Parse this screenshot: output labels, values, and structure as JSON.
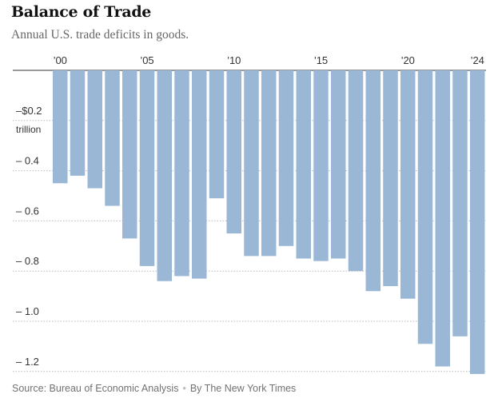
{
  "header": {
    "title": "Balance of Trade",
    "subtitle": "Annual U.S. trade deficits in goods."
  },
  "footer": {
    "source": "Source: Bureau of Economic Analysis",
    "separator": "•",
    "credit": "By The New York Times"
  },
  "colors": {
    "bar": "#9ab8d6",
    "axis": "#333333",
    "grid": "#bbbbbb",
    "text": "#333333"
  },
  "chart_data": {
    "type": "bar",
    "title": "Balance of Trade",
    "subtitle": "Annual U.S. trade deficits in goods.",
    "unit_label": "trillion",
    "x_tick_labels": [
      {
        "year": 2000,
        "label": "’00"
      },
      {
        "year": 2005,
        "label": "’05"
      },
      {
        "year": 2010,
        "label": "’10"
      },
      {
        "year": 2015,
        "label": "’15"
      },
      {
        "year": 2020,
        "label": "’20"
      },
      {
        "year": 2024,
        "label": "’24"
      }
    ],
    "y_tick_labels": [
      {
        "value": -0.2,
        "label": "–$0.2"
      },
      {
        "value": -0.4,
        "label": "– 0.4"
      },
      {
        "value": -0.6,
        "label": "– 0.6"
      },
      {
        "value": -0.8,
        "label": "– 0.8"
      },
      {
        "value": -1.0,
        "label": "– 1.0"
      },
      {
        "value": -1.2,
        "label": "– 1.2"
      }
    ],
    "ylim": [
      -1.22,
      0
    ],
    "grid": true,
    "grid_style": "dotted",
    "categories": [
      2000,
      2001,
      2002,
      2003,
      2004,
      2005,
      2006,
      2007,
      2008,
      2009,
      2010,
      2011,
      2012,
      2013,
      2014,
      2015,
      2016,
      2017,
      2018,
      2019,
      2020,
      2021,
      2022,
      2023,
      2024
    ],
    "values": [
      -0.45,
      -0.42,
      -0.47,
      -0.54,
      -0.67,
      -0.78,
      -0.84,
      -0.82,
      -0.83,
      -0.51,
      -0.65,
      -0.74,
      -0.74,
      -0.7,
      -0.75,
      -0.76,
      -0.75,
      -0.8,
      -0.88,
      -0.86,
      -0.91,
      -1.09,
      -1.18,
      -1.06,
      -1.21
    ]
  }
}
